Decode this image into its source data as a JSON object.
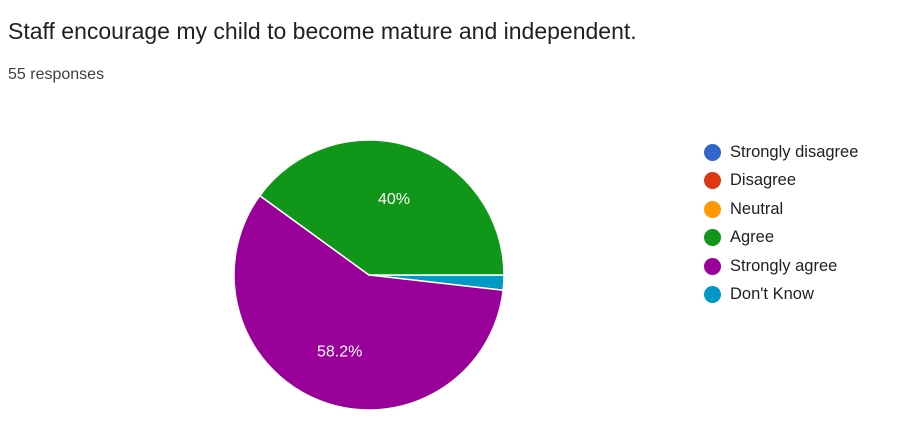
{
  "question": {
    "title": "Staff encourage my child to become mature and independent.",
    "responses": "55 responses"
  },
  "chart_data": {
    "type": "pie",
    "categories": [
      "Strongly disagree",
      "Disagree",
      "Neutral",
      "Agree",
      "Strongly agree",
      "Don't Know"
    ],
    "values": [
      0,
      0,
      0,
      40,
      58.2,
      1.8
    ],
    "slice_labels": [
      "",
      "",
      "",
      "40%",
      "58.2%",
      ""
    ],
    "colors": [
      "#3366cc",
      "#dc3912",
      "#ff9900",
      "#109618",
      "#990099",
      "#0099c6"
    ],
    "legend_position": "right"
  }
}
